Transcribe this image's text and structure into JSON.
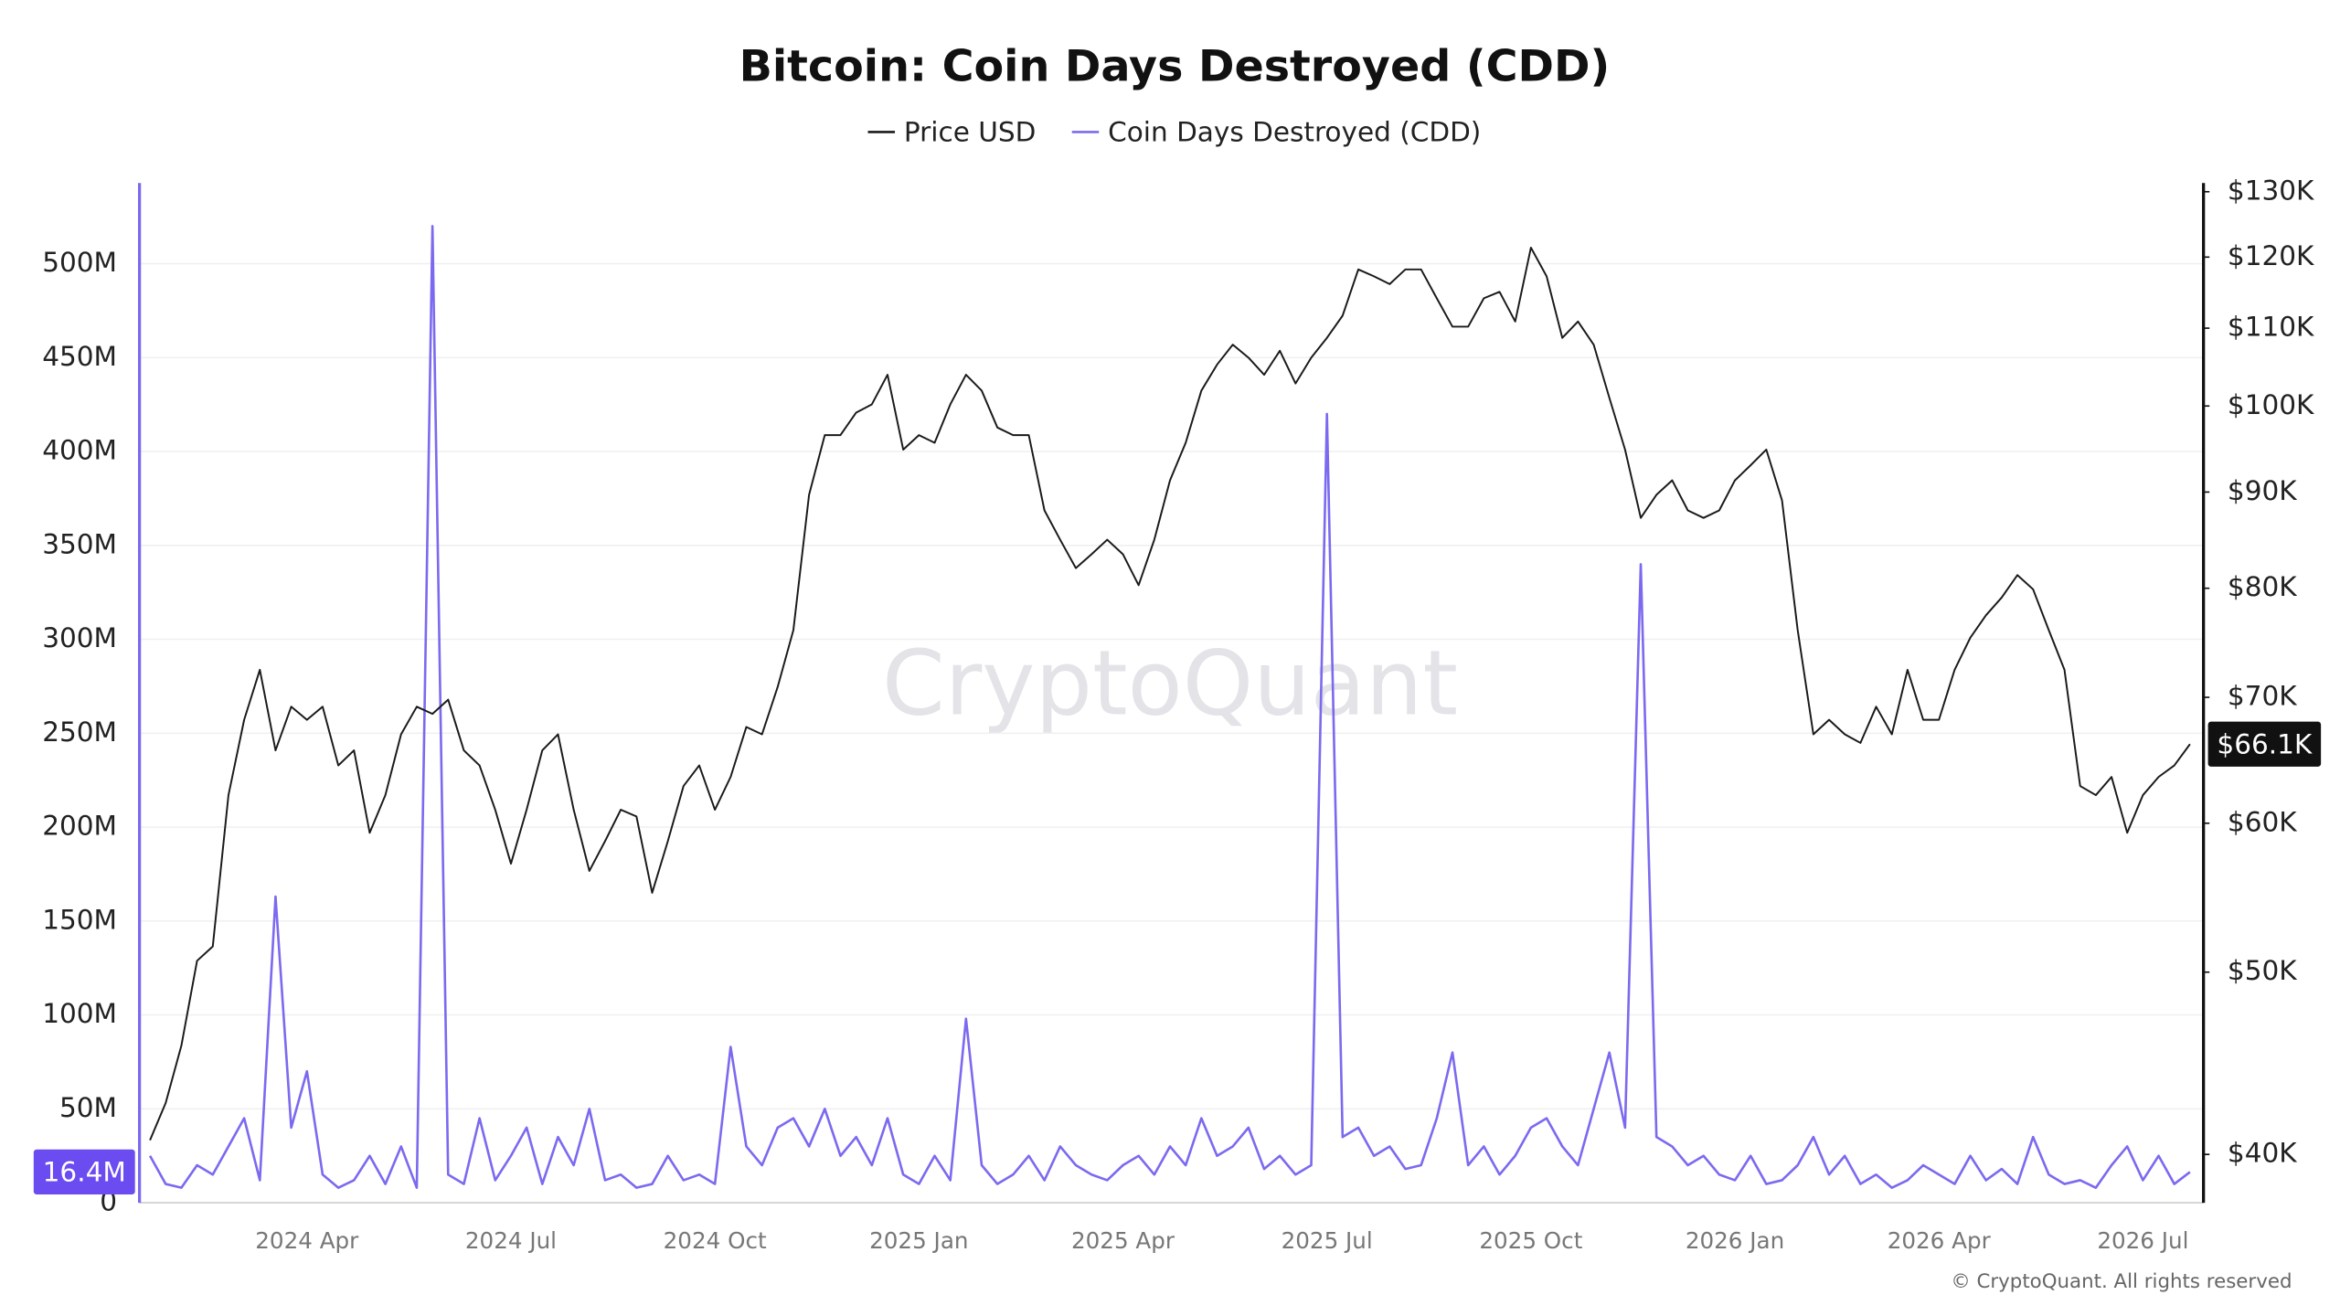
{
  "chart_data": {
    "type": "line",
    "title": "Bitcoin: Coin Days Destroyed (CDD)",
    "categories": [
      null,
      null,
      null,
      null,
      null,
      null,
      null,
      null,
      null,
      null,
      "2024 Apr",
      null,
      null,
      null,
      null,
      null,
      null,
      null,
      null,
      null,
      null,
      null,
      null,
      "2024 Jul",
      null,
      null,
      null,
      null,
      null,
      null,
      null,
      null,
      null,
      null,
      null,
      null,
      "2024 Oct",
      null,
      null,
      null,
      null,
      null,
      null,
      null,
      null,
      null,
      null,
      null,
      null,
      "2025 Jan",
      null,
      null,
      null,
      null,
      null,
      null,
      null,
      null,
      null,
      null,
      null,
      null,
      "2025 Apr",
      null,
      null,
      null,
      null,
      null,
      null,
      null,
      null,
      null,
      null,
      null,
      null,
      "2025 Jul",
      null,
      null,
      null,
      null,
      null,
      null,
      null,
      null,
      null,
      null,
      null,
      null,
      "2025 Oct",
      null,
      null,
      null,
      null,
      null,
      null,
      null,
      null,
      null,
      null,
      null,
      null,
      "2026 Jan",
      null,
      null,
      null,
      null,
      null,
      null,
      null,
      null,
      null,
      null,
      null,
      null,
      "2026 Apr",
      null,
      null,
      null,
      null,
      null,
      null,
      null,
      null,
      null,
      null,
      null,
      null,
      "2026 Jul",
      null,
      null,
      null
    ],
    "series": [
      {
        "name": "Price USD",
        "color": "#1a1a1a",
        "axis": "y2",
        "values": [
          40700,
          42600,
          45700,
          50700,
          51600,
          62100,
          68100,
          72400,
          65600,
          69200,
          68100,
          69200,
          64400,
          65600,
          59300,
          62100,
          66900,
          69200,
          68600,
          69800,
          65600,
          64400,
          61000,
          57100,
          61000,
          65600,
          66900,
          61000,
          56600,
          58700,
          61000,
          60500,
          55100,
          58700,
          62800,
          64400,
          61000,
          63500,
          67500,
          66900,
          70900,
          76000,
          89700,
          96500,
          96500,
          99200,
          100200,
          103900,
          94800,
          96500,
          95600,
          100200,
          103900,
          101900,
          97400,
          96500,
          96500,
          88000,
          84900,
          82000,
          83400,
          84900,
          83400,
          80300,
          84900,
          91300,
          95600,
          101900,
          105200,
          107800,
          106100,
          103900,
          107000,
          102800,
          106100,
          108700,
          111700,
          118200,
          117200,
          116100,
          118200,
          118200,
          114100,
          110200,
          110200,
          114100,
          115000,
          110900,
          121400,
          117200,
          108700,
          110900,
          107800,
          101000,
          94800,
          87200,
          89700,
          91300,
          88000,
          87200,
          88000,
          91300,
          93000,
          94800,
          89100,
          76000,
          66900,
          68100,
          66900,
          66200,
          69200,
          66900,
          72400,
          68100,
          68100,
          72400,
          75300,
          77400,
          79100,
          81300,
          79900,
          76000,
          72400,
          62800,
          62100,
          63500,
          59300,
          62100,
          63500,
          64400,
          66100
        ]
      },
      {
        "name": "Coin Days Destroyed (CDD)",
        "color": "#7b6af0",
        "values": [
          25,
          10,
          8,
          20,
          15,
          30,
          45,
          12,
          163,
          40,
          70,
          15,
          8,
          12,
          25,
          10,
          30,
          8,
          520,
          15,
          10,
          45,
          12,
          25,
          40,
          10,
          35,
          20,
          50,
          12,
          15,
          8,
          10,
          25,
          12,
          15,
          10,
          83,
          30,
          20,
          40,
          45,
          30,
          50,
          25,
          35,
          20,
          45,
          15,
          10,
          25,
          12,
          98,
          20,
          10,
          15,
          25,
          12,
          30,
          20,
          15,
          12,
          20,
          25,
          15,
          30,
          20,
          45,
          25,
          30,
          40,
          18,
          25,
          15,
          20,
          420,
          35,
          40,
          25,
          30,
          18,
          20,
          45,
          80,
          20,
          30,
          15,
          25,
          40,
          45,
          30,
          20,
          50,
          80,
          40,
          340,
          35,
          30,
          20,
          25,
          15,
          12,
          25,
          10,
          12,
          20,
          35,
          15,
          25,
          10,
          15,
          8,
          12,
          20,
          15,
          10,
          25,
          12,
          18,
          10,
          35,
          15,
          10,
          12,
          8,
          20,
          30,
          12,
          25,
          10,
          16.4
        ]
      }
    ],
    "ylim": [
      0,
      543
    ],
    "yticks": [
      0,
      {
        "value": 50,
        "label": "50M"
      },
      {
        "value": 100,
        "label": "100M"
      },
      {
        "value": 150,
        "label": "150M"
      },
      {
        "value": 200,
        "label": "200M"
      },
      {
        "value": 250,
        "label": "250M"
      },
      {
        "value": 300,
        "label": "300M"
      },
      {
        "value": 350,
        "label": "350M"
      },
      {
        "value": 400,
        "label": "400M"
      },
      {
        "value": 450,
        "label": "450M"
      },
      {
        "value": 500,
        "label": "500M"
      }
    ],
    "y2lim": [
      37700,
      131400
    ],
    "y2_log": true,
    "y2ticks": [
      {
        "value": 40000,
        "label": "$40K"
      },
      {
        "value": 50000,
        "label": "$50K"
      },
      {
        "value": 60000,
        "label": "$60K"
      },
      {
        "value": 70000,
        "label": "$70K"
      },
      {
        "value": 80000,
        "label": "$80K"
      },
      {
        "value": 90000,
        "label": "$90K"
      },
      {
        "value": 100000,
        "label": "$100K"
      },
      {
        "value": 110000,
        "label": "$110K"
      },
      {
        "value": 120000,
        "label": "$120K"
      },
      {
        "value": 130000,
        "label": "$130K"
      }
    ],
    "grid": true,
    "annotations": [
      {
        "text": "$66.1K",
        "value": 66100,
        "axis": "y2",
        "color": "#111111"
      },
      {
        "text": "16.4M",
        "value": 16.4,
        "axis": "y",
        "color": "#6a4cf0"
      }
    ],
    "watermark": "CryptoQuant",
    "credit": "© CryptoQuant. All rights reserved"
  }
}
